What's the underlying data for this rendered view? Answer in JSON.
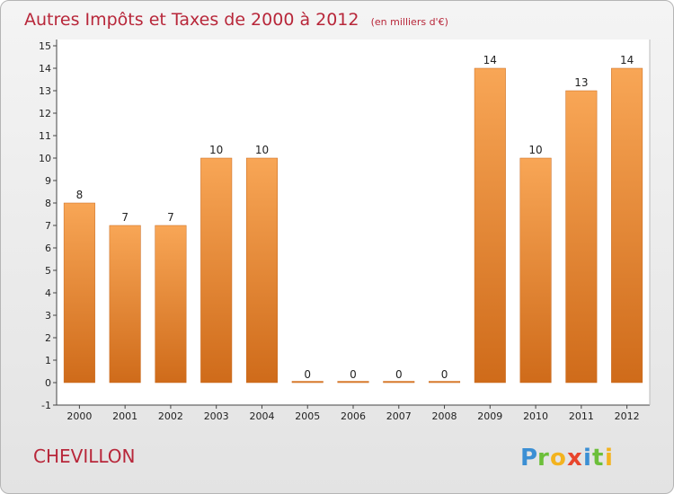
{
  "chart_data": {
    "type": "bar",
    "title": "Autres Impôts et Taxes de 2000 à 2012",
    "subtitle": "(en milliers d'€)",
    "categories": [
      "2000",
      "2001",
      "2002",
      "2003",
      "2004",
      "2005",
      "2006",
      "2007",
      "2008",
      "2009",
      "2010",
      "2011",
      "2012"
    ],
    "values": [
      8,
      7,
      7,
      10,
      10,
      0,
      0,
      0,
      0,
      14,
      10,
      13,
      14
    ],
    "data_labels": [
      "8",
      "7",
      "7",
      "10",
      "10",
      "0",
      "0",
      "0",
      "0",
      "14",
      "10",
      "13",
      "14"
    ],
    "ylim": [
      -1,
      15
    ],
    "yticks": [
      "-1",
      "0",
      "1",
      "2",
      "3",
      "4",
      "5",
      "6",
      "7",
      "8",
      "9",
      "10",
      "11",
      "12",
      "13",
      "14",
      "15"
    ],
    "xlabel": "",
    "ylabel": "",
    "grid": false,
    "bar_color": "#f0923a"
  },
  "commune": "CHEVILLON",
  "logo": {
    "text": "Proxiti"
  }
}
